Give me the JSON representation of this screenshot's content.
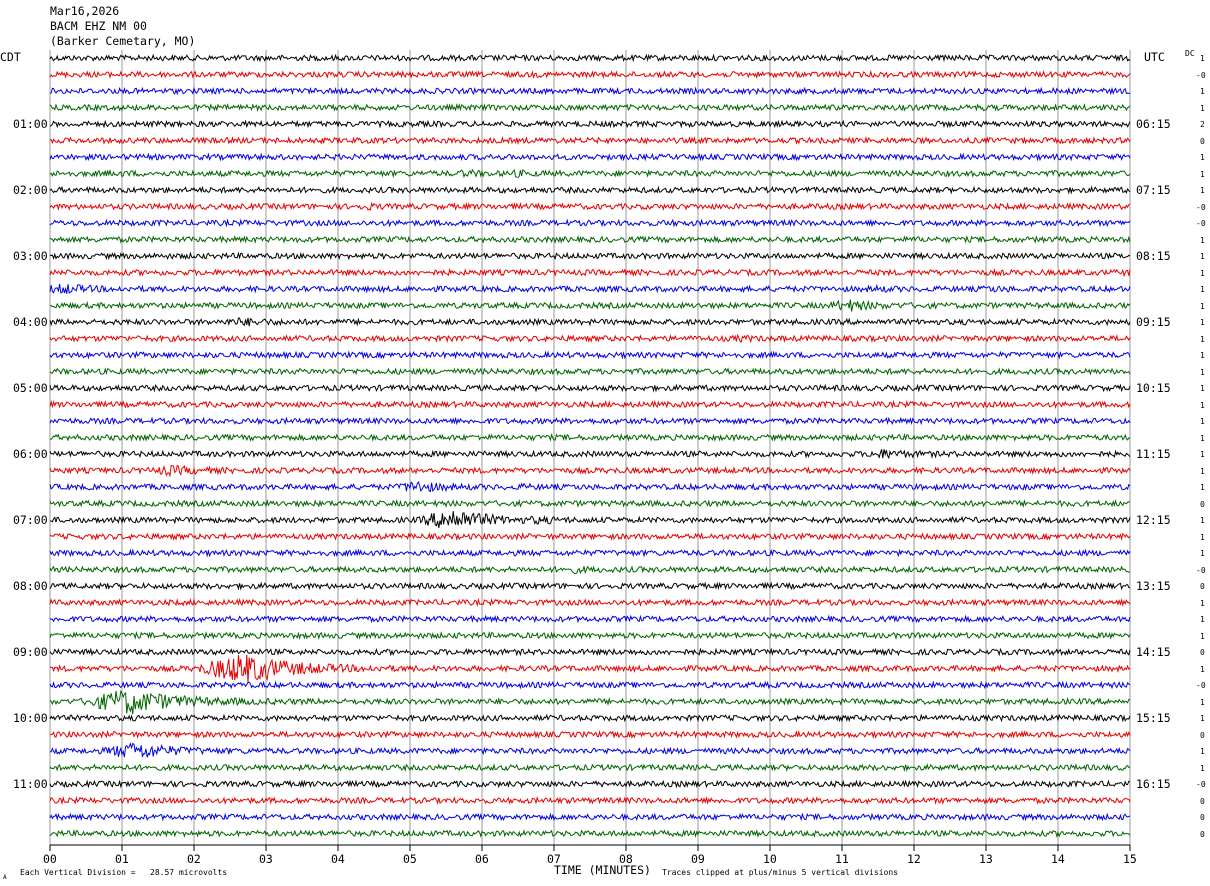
{
  "header": {
    "date": "Mar16,2026",
    "station": "BACM EHZ NM 00",
    "location": "(Barker Cemetary, MO)"
  },
  "left_tz": "CDT",
  "right_tz": "UTC",
  "dc_label": "DC",
  "footer": {
    "scale": "Each Vertical Division =   28.57 microvolts",
    "clip": "Traces clipped at plus/minus 5 vertical divisions",
    "corner": "A"
  },
  "colors": {
    "cycle": [
      "#000000",
      "#e60000",
      "#0000e6",
      "#006400"
    ]
  },
  "chart_data": {
    "type": "line",
    "title": "BACM EHZ NM 00",
    "xlabel": "TIME (MINUTES)",
    "x_ticks": [
      "00",
      "01",
      "02",
      "03",
      "04",
      "05",
      "06",
      "07",
      "08",
      "09",
      "10",
      "11",
      "12",
      "13",
      "14",
      "15"
    ],
    "xlim": [
      0,
      15
    ],
    "trace_count": 48,
    "minutes_per_trace": 15,
    "left_hour_labels": [
      {
        "trace": 4,
        "label": "01:00"
      },
      {
        "trace": 8,
        "label": "02:00"
      },
      {
        "trace": 12,
        "label": "03:00"
      },
      {
        "trace": 16,
        "label": "04:00"
      },
      {
        "trace": 20,
        "label": "05:00"
      },
      {
        "trace": 24,
        "label": "06:00"
      },
      {
        "trace": 28,
        "label": "07:00"
      },
      {
        "trace": 32,
        "label": "08:00"
      },
      {
        "trace": 36,
        "label": "09:00"
      },
      {
        "trace": 40,
        "label": "10:00"
      },
      {
        "trace": 44,
        "label": "11:00"
      }
    ],
    "right_hour_labels": [
      {
        "trace": 4,
        "label": "06:15"
      },
      {
        "trace": 8,
        "label": "07:15"
      },
      {
        "trace": 12,
        "label": "08:15"
      },
      {
        "trace": 16,
        "label": "09:15"
      },
      {
        "trace": 20,
        "label": "10:15"
      },
      {
        "trace": 24,
        "label": "11:15"
      },
      {
        "trace": 28,
        "label": "12:15"
      },
      {
        "trace": 32,
        "label": "13:15"
      },
      {
        "trace": 36,
        "label": "14:15"
      },
      {
        "trace": 40,
        "label": "15:15"
      },
      {
        "trace": 44,
        "label": "16:15"
      }
    ],
    "dc_offsets": [
      "1",
      "-0",
      "1",
      "1",
      "2",
      "0",
      "1",
      "1",
      "1",
      "-0",
      "-0",
      "1",
      "1",
      "1",
      "1",
      "1",
      "1",
      "1",
      "1",
      "1",
      "1",
      "1",
      "1",
      "1",
      "1",
      "1",
      "1",
      "0",
      "1",
      "1",
      "1",
      "-0",
      "0",
      "1",
      "1",
      "1",
      "0",
      "1",
      "-0",
      "1",
      "1",
      "0",
      "1",
      "1",
      "-0",
      "0",
      "0",
      "0"
    ],
    "events": [
      {
        "trace": 3,
        "minute": 12.9,
        "amp": 1.2,
        "dur": 0.15
      },
      {
        "trace": 7,
        "minute": 0.9,
        "amp": 1.3,
        "dur": 0.2
      },
      {
        "trace": 7,
        "minute": 5.8,
        "amp": 1.5,
        "dur": 0.2
      },
      {
        "trace": 7,
        "minute": 6.5,
        "amp": 1.5,
        "dur": 0.2
      },
      {
        "trace": 9,
        "minute": 4.4,
        "amp": 1.5,
        "dur": 0.15
      },
      {
        "trace": 10,
        "minute": 8.6,
        "amp": 1.2,
        "dur": 0.15
      },
      {
        "trace": 13,
        "minute": 15.0,
        "amp": 1.5,
        "dur": 0.15
      },
      {
        "trace": 14,
        "minute": 0.2,
        "amp": 2.2,
        "dur": 0.3
      },
      {
        "trace": 14,
        "minute": 11.5,
        "amp": 1.4,
        "dur": 0.2
      },
      {
        "trace": 14,
        "minute": 13.1,
        "amp": 1.4,
        "dur": 0.2
      },
      {
        "trace": 15,
        "minute": 11.1,
        "amp": 2.5,
        "dur": 0.3
      },
      {
        "trace": 16,
        "minute": 2.7,
        "amp": 1.8,
        "dur": 0.3
      },
      {
        "trace": 17,
        "minute": 9.6,
        "amp": 1.5,
        "dur": 0.15
      },
      {
        "trace": 26,
        "minute": 6.6,
        "amp": 1.3,
        "dur": 0.15
      },
      {
        "trace": 24,
        "minute": 11.6,
        "amp": 2.0,
        "dur": 0.3
      },
      {
        "trace": 25,
        "minute": 1.7,
        "amp": 2.0,
        "dur": 0.35
      },
      {
        "trace": 26,
        "minute": 5.1,
        "amp": 2.6,
        "dur": 0.3
      },
      {
        "trace": 28,
        "minute": 5.6,
        "amp": 4.5,
        "dur": 0.5
      },
      {
        "trace": 28,
        "minute": 6.8,
        "amp": 1.5,
        "dur": 0.2
      },
      {
        "trace": 31,
        "minute": 7.3,
        "amp": 1.5,
        "dur": 0.2
      },
      {
        "trace": 37,
        "minute": 2.7,
        "amp": 6.0,
        "dur": 0.7
      },
      {
        "trace": 39,
        "minute": 1.1,
        "amp": 5.0,
        "dur": 0.7
      },
      {
        "trace": 42,
        "minute": 1.2,
        "amp": 3.5,
        "dur": 0.5
      }
    ]
  }
}
